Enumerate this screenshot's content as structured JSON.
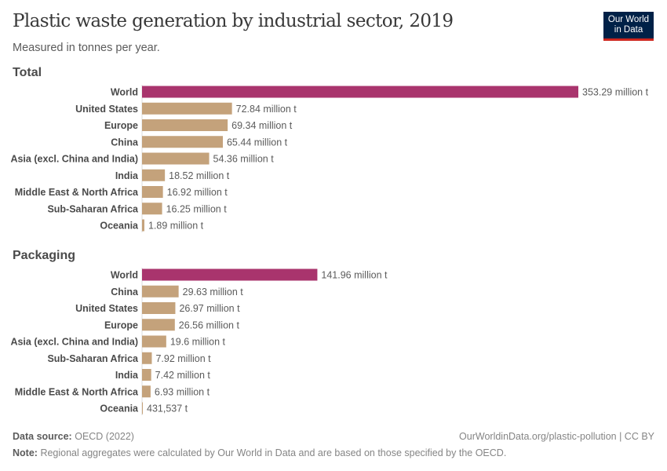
{
  "header": {
    "title": "Plastic waste generation by industrial sector, 2019",
    "subtitle": "Measured in tonnes per year.",
    "logo": "Our World in Data"
  },
  "colors": {
    "world": "#a9346d",
    "region": "#c4a27b"
  },
  "chart_data": [
    {
      "type": "bar",
      "orientation": "horizontal",
      "title": "Total",
      "unit": "tonnes",
      "categories": [
        "World",
        "United States",
        "Europe",
        "China",
        "Asia (excl. China and India)",
        "India",
        "Middle East & North Africa",
        "Sub-Saharan Africa",
        "Oceania"
      ],
      "values": [
        353290000,
        72840000,
        69340000,
        65440000,
        54360000,
        18520000,
        16920000,
        16250000,
        1890000
      ],
      "value_labels": [
        "353.29 million t",
        "72.84 million t",
        "69.34 million t",
        "65.44 million t",
        "54.36 million t",
        "18.52 million t",
        "16.92 million t",
        "16.25 million t",
        "1.89 million t"
      ]
    },
    {
      "type": "bar",
      "orientation": "horizontal",
      "title": "Packaging",
      "unit": "tonnes",
      "categories": [
        "World",
        "China",
        "United States",
        "Europe",
        "Asia (excl. China and India)",
        "Sub-Saharan Africa",
        "India",
        "Middle East & North Africa",
        "Oceania"
      ],
      "values": [
        141960000,
        29630000,
        26970000,
        26560000,
        19600000,
        7920000,
        7420000,
        6930000,
        431537
      ],
      "value_labels": [
        "141.96 million t",
        "29.63 million t",
        "26.97 million t",
        "26.56 million t",
        "19.6 million t",
        "7.92 million t",
        "7.42 million t",
        "6.93 million t",
        "431,537 t"
      ]
    }
  ],
  "footer": {
    "source_label": "Data source:",
    "source": "OECD (2022)",
    "url": "OurWorldinData.org/plastic-pollution | CC BY",
    "note_label": "Note:",
    "note": "Regional aggregates were calculated by Our World in Data and are based on those specified by the OECD."
  }
}
